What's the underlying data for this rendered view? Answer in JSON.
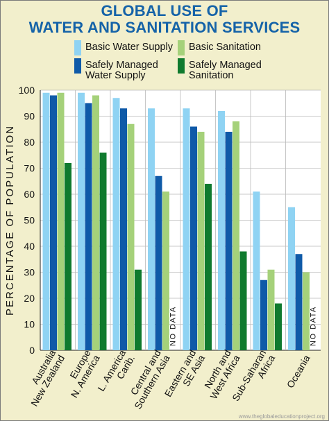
{
  "title_line1": "GLOBAL USE OF",
  "title_line2": "WATER AND SANITATION SERVICES",
  "credit": "www.theglobaleducationproject.org",
  "colors": {
    "background": "#f2efcc",
    "title": "#1563a8",
    "basic_water": "#8fd3f3",
    "safe_water": "#0f5aa8",
    "basic_sanitation": "#a5d17a",
    "safe_sanitation": "#0f7a2e"
  },
  "chart_data": {
    "type": "bar",
    "title": "GLOBAL USE OF WATER AND SANITATION SERVICES",
    "xlabel": "",
    "ylabel": "PERCENTAGE OF POPULATION",
    "ylim": [
      0,
      100
    ],
    "yticks": [
      0,
      10,
      20,
      30,
      40,
      50,
      60,
      70,
      80,
      90,
      100
    ],
    "grid": true,
    "legend": "top",
    "categories": [
      [
        "Australia",
        "New Zealand"
      ],
      [
        "Europe",
        "N. America"
      ],
      [
        "L. America",
        "Carib."
      ],
      [
        "Central and",
        "Southern Asia"
      ],
      [
        "Eastern and",
        "SE Asia"
      ],
      [
        "North and",
        "West Africa"
      ],
      [
        "Sub-Saharan",
        "Africa"
      ],
      [
        "Oceania"
      ]
    ],
    "series": [
      {
        "name": "Basic Water Supply",
        "color": "#8fd3f3",
        "values": [
          99,
          99,
          97,
          93,
          93,
          92,
          61,
          55
        ]
      },
      {
        "name": "Safely Managed Water Supply",
        "color": "#0f5aa8",
        "values": [
          98,
          95,
          93,
          67,
          86,
          84,
          27,
          37
        ]
      },
      {
        "name": "Basic Sanitation",
        "color": "#a5d17a",
        "values": [
          99,
          98,
          87,
          61,
          84,
          88,
          31,
          30
        ]
      },
      {
        "name": "Safely Managed Sanitation",
        "color": "#0f7a2e",
        "values": [
          72,
          76,
          31,
          null,
          64,
          38,
          18,
          null
        ]
      }
    ],
    "legend_entries": [
      {
        "lines": [
          "Basic Water Supply"
        ],
        "color": "#8fd3f3"
      },
      {
        "lines": [
          "Basic Sanitation"
        ],
        "color": "#a5d17a"
      },
      {
        "lines": [
          "Safely Managed",
          "Water Supply"
        ],
        "color": "#0f5aa8"
      },
      {
        "lines": [
          "Safely Managed",
          "Sanitation"
        ],
        "color": "#0f7a2e"
      }
    ],
    "annotations": [
      {
        "text": "NO DATA",
        "category_index": 3
      },
      {
        "text": "NO DATA",
        "category_index": 7
      }
    ]
  }
}
